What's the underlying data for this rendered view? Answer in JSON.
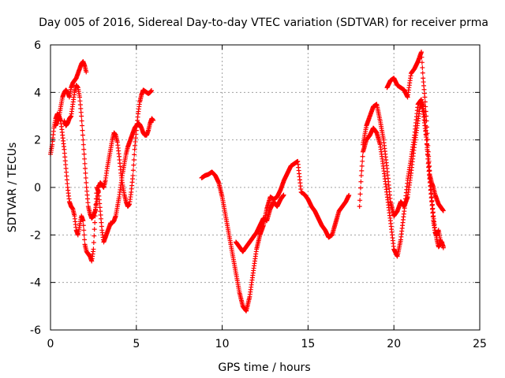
{
  "chart_data": {
    "type": "scatter",
    "title": "Day 005 of 2016, Sidereal Day-to-day VTEC variation (SDTVAR) for receiver prma",
    "xlabel": "GPS time / hours",
    "ylabel": "SDTVAR / TECUs",
    "xlim": [
      0,
      25
    ],
    "ylim": [
      -6,
      6
    ],
    "xticks": [
      0,
      5,
      10,
      15,
      20,
      25
    ],
    "yticks": [
      -6,
      -4,
      -2,
      0,
      2,
      4,
      6
    ],
    "grid": true,
    "marker": "+",
    "color": "#ff0000",
    "series": [
      {
        "name": "segment-1",
        "x": [
          0.0,
          0.1,
          0.2,
          0.3,
          0.4,
          0.5,
          0.6,
          0.7,
          0.8,
          0.9,
          1.0,
          1.1,
          1.2,
          1.3,
          1.4,
          1.5,
          1.6,
          1.7,
          1.8,
          1.9,
          2.0,
          2.1,
          2.2,
          2.3,
          2.4,
          2.5,
          2.6,
          2.7,
          2.8,
          2.9,
          3.0,
          3.1,
          3.2,
          3.3,
          3.4,
          3.5,
          3.6,
          3.7,
          3.8,
          3.9,
          4.0,
          4.1,
          4.2,
          4.3,
          4.4,
          4.5,
          4.6,
          4.7,
          4.8,
          4.9,
          5.0,
          5.1,
          5.2,
          5.3,
          5.4,
          5.5,
          5.6,
          5.7,
          5.8,
          5.9,
          6.0
        ],
        "y": [
          1.4,
          1.8,
          2.5,
          2.9,
          3.1,
          3.0,
          2.8,
          2.2,
          1.6,
          0.8,
          0.0,
          -0.6,
          -0.8,
          -0.9,
          -1.2,
          -1.8,
          -2.0,
          -1.6,
          -1.2,
          -1.4,
          -2.4,
          -2.7,
          -2.8,
          -2.9,
          -3.1,
          -2.6,
          -1.2,
          0.0,
          -0.2,
          -1.0,
          -1.8,
          -2.3,
          -2.1,
          -1.9,
          -1.7,
          -1.5,
          -1.5,
          -1.4,
          -1.2,
          -0.8,
          -0.4,
          0.1,
          0.6,
          1.0,
          1.4,
          1.7,
          1.9,
          2.1,
          2.3,
          2.5,
          2.6,
          2.7,
          2.65,
          2.5,
          2.3,
          2.2,
          2.2,
          2.4,
          2.7,
          2.9,
          2.8
        ]
      },
      {
        "name": "segment-2",
        "x": [
          0.3,
          0.4,
          0.5,
          0.6,
          0.7,
          0.8,
          0.9,
          1.0,
          1.1,
          1.2,
          1.3,
          1.4,
          1.5,
          1.6,
          1.7,
          1.8,
          1.9,
          2.0,
          2.1
        ],
        "y": [
          2.6,
          2.8,
          3.0,
          3.4,
          3.8,
          4.0,
          4.1,
          4.0,
          3.8,
          4.2,
          4.4,
          4.5,
          4.6,
          4.8,
          5.0,
          5.2,
          5.3,
          5.1,
          4.8
        ]
      },
      {
        "name": "segment-3",
        "x": [
          0.8,
          0.9,
          1.0,
          1.1,
          1.2,
          1.3,
          1.4,
          1.5,
          1.6,
          1.7,
          1.8,
          1.9,
          2.0,
          2.1,
          2.2,
          2.3,
          2.4,
          2.5,
          2.6,
          2.7,
          2.8,
          2.9,
          3.0,
          3.1,
          3.2,
          3.3,
          3.4,
          3.5,
          3.6,
          3.7,
          3.8,
          3.9,
          4.0,
          4.1,
          4.2,
          4.3,
          4.4,
          4.5,
          4.6,
          4.7,
          4.8,
          4.9,
          5.0,
          5.1,
          5.2,
          5.3,
          5.4,
          5.5,
          5.6,
          5.7,
          5.8,
          5.9
        ],
        "y": [
          2.8,
          2.6,
          2.7,
          2.9,
          3.0,
          3.5,
          4.0,
          4.3,
          4.2,
          3.8,
          3.0,
          2.0,
          1.0,
          0.0,
          -0.8,
          -1.1,
          -1.3,
          -1.2,
          -1.0,
          -0.6,
          0.0,
          0.2,
          0.1,
          0.0,
          0.3,
          0.8,
          1.2,
          1.6,
          2.0,
          2.3,
          2.2,
          1.9,
          1.3,
          0.6,
          0.1,
          -0.3,
          -0.6,
          -0.8,
          -0.7,
          -0.2,
          0.5,
          1.6,
          2.4,
          3.1,
          3.6,
          3.9,
          4.1,
          4.05,
          4.0,
          3.95,
          4.0,
          4.1
        ]
      },
      {
        "name": "segment-4",
        "x": [
          8.8,
          9.0,
          9.2,
          9.4,
          9.6,
          9.8,
          10.0,
          10.2,
          10.4,
          10.6,
          10.8,
          11.0,
          11.2,
          11.4,
          11.6,
          11.8,
          12.0,
          12.2,
          12.4,
          12.6,
          12.8,
          13.0,
          13.2,
          13.4,
          13.6,
          13.8,
          14.0,
          14.2,
          14.4,
          14.6,
          14.8,
          15.0,
          15.2,
          15.4,
          15.6,
          15.8,
          16.0,
          16.2,
          16.4,
          16.6,
          16.8,
          17.0,
          17.2,
          17.4
        ],
        "y": [
          0.4,
          0.5,
          0.55,
          0.65,
          0.5,
          0.2,
          -0.4,
          -1.2,
          -2.0,
          -2.8,
          -3.6,
          -4.4,
          -5.0,
          -5.2,
          -4.6,
          -3.6,
          -2.6,
          -2.0,
          -1.6,
          -0.9,
          -0.4,
          -0.5,
          -0.4,
          -0.1,
          0.3,
          0.6,
          0.9,
          1.0,
          1.1,
          -0.2,
          -0.3,
          -0.5,
          -0.8,
          -1.0,
          -1.3,
          -1.6,
          -1.8,
          -2.1,
          -2.0,
          -1.5,
          -1.0,
          -0.8,
          -0.6,
          -0.3
        ]
      },
      {
        "name": "segment-5",
        "x": [
          10.8,
          11.0,
          11.2,
          11.4,
          11.6,
          11.8,
          12.0,
          12.2,
          12.4,
          12.6,
          12.8,
          13.0,
          13.2,
          13.4,
          13.6
        ],
        "y": [
          -2.3,
          -2.5,
          -2.7,
          -2.5,
          -2.3,
          -2.1,
          -1.9,
          -1.6,
          -1.3,
          -1.4,
          -0.9,
          -0.6,
          -0.8,
          -0.5,
          -0.3
        ]
      },
      {
        "name": "segment-6",
        "x": [
          18.0,
          18.1,
          18.2,
          18.4,
          18.6,
          18.8,
          19.0,
          19.2,
          19.4,
          19.6,
          19.8,
          20.0,
          20.2,
          20.4,
          20.6,
          20.8,
          21.0,
          21.2,
          21.4,
          21.6,
          21.7,
          21.8,
          21.9,
          22.0,
          22.1,
          22.2,
          22.3,
          22.4,
          22.5,
          22.6,
          22.7,
          22.8,
          22.9
        ],
        "y": [
          -0.8,
          0.5,
          1.5,
          2.0,
          2.2,
          2.5,
          2.3,
          1.8,
          0.8,
          -0.3,
          -1.4,
          -2.6,
          -2.9,
          -2.2,
          -1.0,
          0.3,
          1.2,
          2.2,
          3.5,
          3.7,
          3.2,
          2.6,
          2.0,
          1.2,
          0.4,
          -0.4,
          -1.2,
          -1.8,
          -2.2,
          -2.5,
          -2.4,
          -2.3,
          -2.6
        ]
      },
      {
        "name": "segment-7",
        "x": [
          18.2,
          18.4,
          18.6,
          18.8,
          19.0,
          19.2,
          19.4,
          19.6,
          19.8,
          20.0,
          20.2,
          20.4,
          20.6,
          20.8,
          21.0,
          21.2,
          21.4,
          21.5,
          21.6,
          21.7,
          21.8,
          21.9,
          22.0,
          22.1,
          22.2,
          22.3,
          22.4,
          22.5,
          22.6,
          22.7,
          22.8,
          22.9
        ],
        "y": [
          1.8,
          2.6,
          3.0,
          3.4,
          3.5,
          2.8,
          2.0,
          0.8,
          -0.6,
          -1.2,
          -1.0,
          -0.6,
          -0.8,
          -0.4,
          0.6,
          1.8,
          2.8,
          3.3,
          3.6,
          3.4,
          3.0,
          2.0,
          1.0,
          0.2,
          -0.6,
          -1.4,
          -1.9,
          -2.0,
          -1.8,
          -2.2,
          -2.4,
          -2.5
        ]
      },
      {
        "name": "segment-8",
        "x": [
          19.6,
          19.8,
          20.0,
          20.2,
          20.4,
          20.6,
          20.8,
          21.0,
          21.2,
          21.4,
          21.5,
          21.6,
          21.7,
          21.8,
          21.9,
          22.0,
          22.1,
          22.2,
          22.3,
          22.4,
          22.5,
          22.6,
          22.7,
          22.8,
          22.9
        ],
        "y": [
          4.2,
          4.5,
          4.6,
          4.3,
          4.2,
          4.1,
          3.8,
          4.8,
          5.0,
          5.3,
          5.5,
          5.7,
          4.6,
          3.8,
          2.8,
          1.5,
          0.5,
          0.2,
          0.0,
          -0.3,
          -0.5,
          -0.7,
          -0.8,
          -0.9,
          -1.0
        ]
      }
    ]
  }
}
